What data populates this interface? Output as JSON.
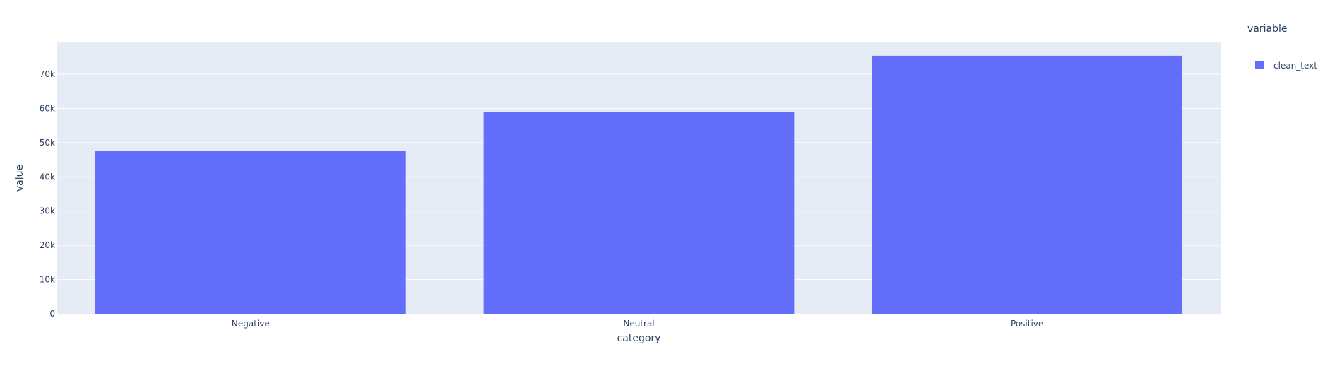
{
  "chart_data": {
    "type": "bar",
    "categories": [
      "Negative",
      "Neutral",
      "Positive"
    ],
    "series": [
      {
        "name": "clean_text",
        "values": [
          47600,
          59000,
          75400
        ]
      }
    ],
    "xlabel": "category",
    "ylabel": "value",
    "ylim": [
      0,
      79300
    ],
    "yticks": [
      0,
      10000,
      20000,
      30000,
      40000,
      50000,
      60000,
      70000
    ],
    "ytick_labels": [
      "0",
      "10k",
      "20k",
      "30k",
      "40k",
      "50k",
      "60k",
      "70k"
    ],
    "legend": {
      "title": "variable",
      "position": "top-right"
    },
    "grid": true,
    "colors": {
      "plot_bg": "#E5ECF6",
      "paper_bg": "#FFFFFF",
      "bar": "#636EFA",
      "grid": "#FFFFFF",
      "text": "#2a3f5f"
    }
  }
}
